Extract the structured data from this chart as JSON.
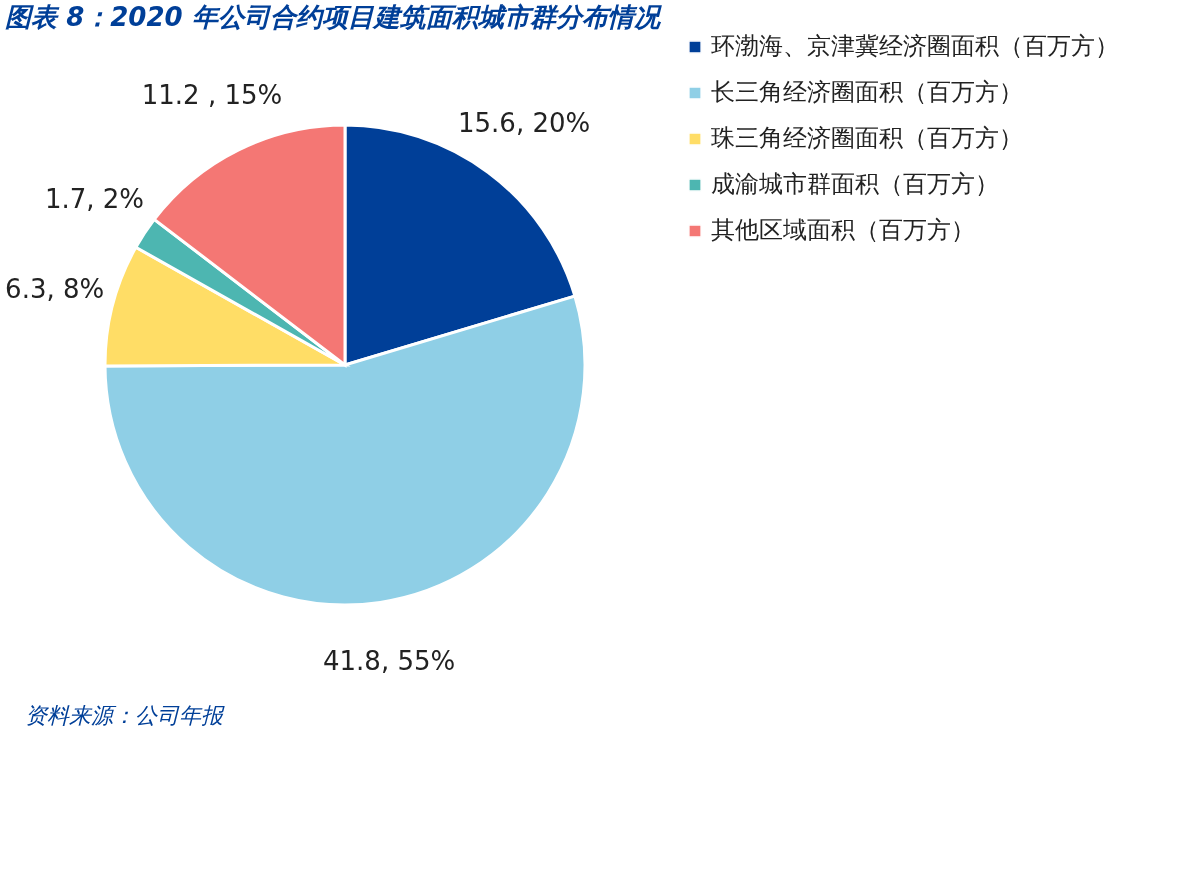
{
  "chart_data": {
    "type": "pie",
    "title": "图表 8：2020 年公司合约项目建筑面积城市群分布情况",
    "categories": [
      "环渤海、京津冀经济圈面积（百万方）",
      "长三角经济圈面积（百万方）",
      "珠三角经济圈面积（百万方）",
      "成渝城市群面积（百万方）",
      "其他区域面积（百万方）"
    ],
    "values": [
      15.6,
      41.8,
      6.3,
      1.7,
      11.2
    ],
    "colors": [
      "#003f98",
      "#8fcfe6",
      "#ffdd66",
      "#4db6b1",
      "#f47774"
    ],
    "value_labels": [
      "15.6, 20%",
      "41.8, 55%",
      "6.3, 8%",
      "1.7, 2%",
      "11.2 , 15%"
    ],
    "legend": "right",
    "annotations": [
      "资料来源：公司年报"
    ]
  }
}
